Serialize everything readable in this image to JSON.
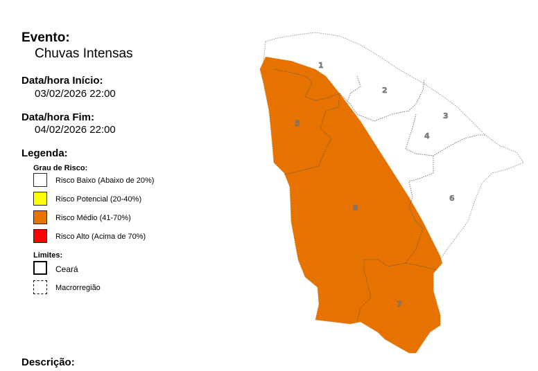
{
  "event": {
    "label": "Evento:",
    "value": "Chuvas Intensas"
  },
  "start": {
    "label": "Data/hora Início:",
    "value": "03/02/2026 22:00"
  },
  "end": {
    "label": "Data/hora Fim:",
    "value": "04/02/2026 22:00"
  },
  "legend": {
    "title": "Legenda:",
    "risk_title": "Grau de Risco:",
    "risk_items": [
      {
        "label": "Risco Baixo (Abaixo de 20%)",
        "color": "#ffffff"
      },
      {
        "label": "Risco Potencial (20-40%)",
        "color": "#ffff00"
      },
      {
        "label": "Risco Médio (41-70%)",
        "color": "#e67300"
      },
      {
        "label": "Risco Alto (Acima de 70%)",
        "color": "#ff0000"
      }
    ],
    "limits_title": "Limites:",
    "limits_items": [
      {
        "label": "Ceará"
      },
      {
        "label": "Macrorregião"
      }
    ]
  },
  "map": {
    "affected_risk": "Risco Médio (41-70%)",
    "affected_color": "#e67300",
    "region_labels": [
      "1",
      "2",
      "3",
      "4",
      "5",
      "6",
      "7",
      "8"
    ]
  },
  "description": {
    "label": "Descrição:"
  }
}
